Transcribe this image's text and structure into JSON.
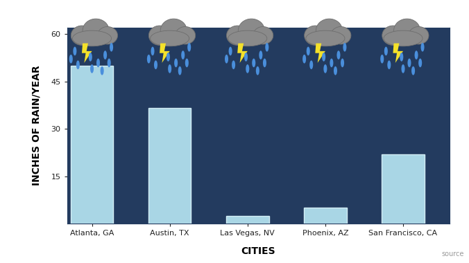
{
  "chart_data": {
    "type": "bar",
    "categories": [
      "Atlanta, GA",
      "Austin, TX",
      "Las Vegas, NV",
      "Phoenix, AZ",
      "San Francisco, CA"
    ],
    "values": [
      50,
      36.5,
      2.5,
      5,
      22
    ],
    "color": "#a9d6e5",
    "x_label": "CITIES",
    "y_label": "INCHES OF RAIN/YEAR",
    "note": "source",
    "ylim": [
      0,
      62
    ],
    "yticks": [
      15,
      30,
      45,
      60
    ],
    "grid": false
  }
}
